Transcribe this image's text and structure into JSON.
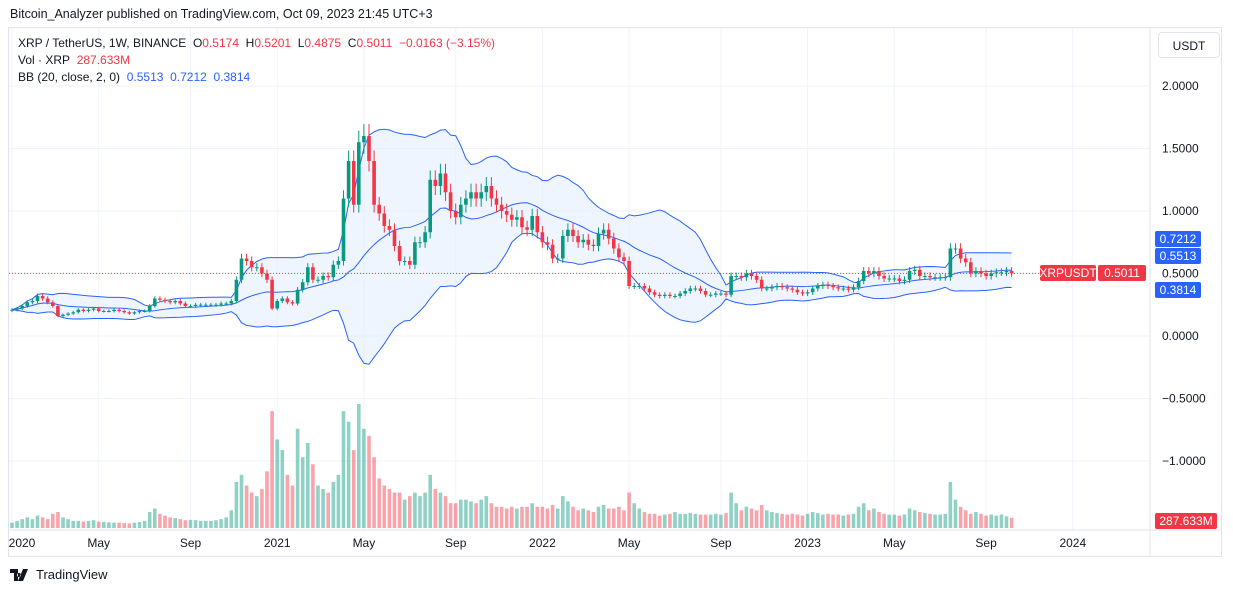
{
  "published": "Bitcoin_Analyzer published on TradingView.com, Oct 09, 2023 21:45 UTC+3",
  "legend": {
    "symbol": "XRP / TetherUS, 1W, BINANCE",
    "o_label": "O",
    "o": "0.5174",
    "h_label": "H",
    "h": "0.5201",
    "l_label": "L",
    "l": "0.4875",
    "c_label": "C",
    "c": "0.5011",
    "change": "−0.0163 (−3.15%)",
    "vol_label": "Vol · XRP",
    "vol": "287.633M",
    "bb_label": "BB (20, close, 2, 0)",
    "bb_basis": "0.5513",
    "bb_upper": "0.7212",
    "bb_lower": "0.3814"
  },
  "currency_button": "USDT",
  "brand": "TradingView",
  "colors": {
    "up": "#089981",
    "down": "#f23645",
    "band": "#2962ff",
    "band_fill": "#e3effd"
  },
  "chart_data": {
    "type": "candlestick",
    "interval": "1W",
    "ylim": [
      -1.3,
      2.3
    ],
    "y_ticks": [
      "2.0000",
      "1.5000",
      "1.0000",
      "0.5000",
      "0.0000",
      "−0.5000",
      "−1.0000"
    ],
    "y_tick_values": [
      2,
      1.5,
      1,
      0.5,
      0,
      -0.5,
      -1
    ],
    "x_ticks": [
      "2020",
      "May",
      "Sep",
      "2021",
      "May",
      "Sep",
      "2022",
      "May",
      "Sep",
      "2023",
      "May",
      "Sep",
      "2024"
    ],
    "x_tick_weeks": [
      0,
      17,
      35,
      52,
      69,
      87,
      104,
      121,
      139,
      156,
      173,
      191,
      208
    ],
    "price_labels": {
      "symbol": "XRPUSDT",
      "last": "0.5011",
      "bb_upper": "0.7212",
      "bb_basis": "0.5513",
      "bb_lower": "0.3814",
      "volume": "287.633M"
    },
    "bollinger": {
      "length": 20,
      "mult": 2
    },
    "closes": [
      0.21,
      0.22,
      0.24,
      0.27,
      0.28,
      0.32,
      0.3,
      0.27,
      0.24,
      0.16,
      0.17,
      0.18,
      0.19,
      0.21,
      0.2,
      0.21,
      0.22,
      0.2,
      0.2,
      0.2,
      0.21,
      0.2,
      0.19,
      0.18,
      0.19,
      0.2,
      0.2,
      0.24,
      0.3,
      0.29,
      0.28,
      0.27,
      0.28,
      0.26,
      0.24,
      0.24,
      0.25,
      0.25,
      0.25,
      0.25,
      0.25,
      0.26,
      0.26,
      0.28,
      0.45,
      0.62,
      0.6,
      0.55,
      0.55,
      0.5,
      0.45,
      0.22,
      0.28,
      0.3,
      0.27,
      0.26,
      0.37,
      0.43,
      0.55,
      0.45,
      0.45,
      0.48,
      0.47,
      0.57,
      0.6,
      1.1,
      1.4,
      1.05,
      1.55,
      1.6,
      1.4,
      1.05,
      0.98,
      0.88,
      0.85,
      0.72,
      0.6,
      0.6,
      0.57,
      0.75,
      0.75,
      0.83,
      1.25,
      1.2,
      1.3,
      1.15,
      1.0,
      0.95,
      1.05,
      1.1,
      1.15,
      1.1,
      1.15,
      1.2,
      1.1,
      1.05,
      1.0,
      0.97,
      0.93,
      0.95,
      0.87,
      0.85,
      0.96,
      0.83,
      0.75,
      0.73,
      0.62,
      0.62,
      0.8,
      0.85,
      0.8,
      0.75,
      0.77,
      0.73,
      0.72,
      0.82,
      0.85,
      0.78,
      0.7,
      0.63,
      0.6,
      0.4,
      0.4,
      0.4,
      0.38,
      0.35,
      0.33,
      0.32,
      0.33,
      0.32,
      0.32,
      0.34,
      0.36,
      0.38,
      0.38,
      0.36,
      0.33,
      0.33,
      0.34,
      0.34,
      0.33,
      0.48,
      0.48,
      0.47,
      0.5,
      0.48,
      0.45,
      0.38,
      0.38,
      0.39,
      0.4,
      0.39,
      0.38,
      0.37,
      0.35,
      0.34,
      0.35,
      0.38,
      0.4,
      0.41,
      0.4,
      0.39,
      0.38,
      0.38,
      0.37,
      0.39,
      0.44,
      0.52,
      0.5,
      0.52,
      0.48,
      0.46,
      0.46,
      0.46,
      0.44,
      0.45,
      0.52,
      0.53,
      0.48,
      0.48,
      0.47,
      0.47,
      0.47,
      0.47,
      0.7,
      0.7,
      0.62,
      0.59,
      0.5,
      0.52,
      0.5,
      0.48,
      0.5,
      0.51,
      0.51,
      0.52,
      0.5011
    ],
    "volumes_millions": [
      150,
      200,
      250,
      300,
      250,
      350,
      300,
      250,
      400,
      450,
      300,
      250,
      200,
      200,
      180,
      200,
      220,
      180,
      170,
      160,
      150,
      150,
      140,
      130,
      150,
      170,
      200,
      450,
      550,
      400,
      350,
      300,
      280,
      250,
      220,
      230,
      220,
      200,
      200,
      200,
      220,
      250,
      300,
      500,
      1300,
      1500,
      1200,
      1000,
      900,
      1100,
      1600,
      3300,
      2500,
      2200,
      1500,
      1200,
      2800,
      2000,
      2400,
      1800,
      1200,
      1100,
      1000,
      1300,
      1500,
      3300,
      3000,
      2200,
      3500,
      2800,
      2600,
      2000,
      1400,
      1200,
      1100,
      1000,
      1000,
      800,
      900,
      1000,
      900,
      1000,
      1500,
      1100,
      1000,
      900,
      700,
      700,
      800,
      800,
      750,
      700,
      800,
      900,
      700,
      600,
      600,
      550,
      600,
      550,
      600,
      600,
      700,
      600,
      600,
      550,
      650,
      550,
      900,
      750,
      600,
      500,
      550,
      500,
      450,
      600,
      650,
      550,
      550,
      600,
      500,
      1000,
      700,
      550,
      450,
      400,
      400,
      350,
      380,
      400,
      450,
      400,
      400,
      420,
      400,
      380,
      380,
      380,
      400,
      380,
      420,
      1000,
      700,
      500,
      600,
      550,
      500,
      650,
      500,
      450,
      420,
      400,
      380,
      400,
      380,
      350,
      400,
      450,
      420,
      380,
      400,
      380,
      380,
      350,
      380,
      400,
      600,
      700,
      500,
      550,
      450,
      400,
      380,
      380,
      350,
      380,
      550,
      500,
      450,
      420,
      400,
      380,
      380,
      400,
      1300,
      800,
      600,
      500,
      400,
      450,
      400,
      350,
      380,
      350,
      380,
      330,
      288
    ]
  }
}
